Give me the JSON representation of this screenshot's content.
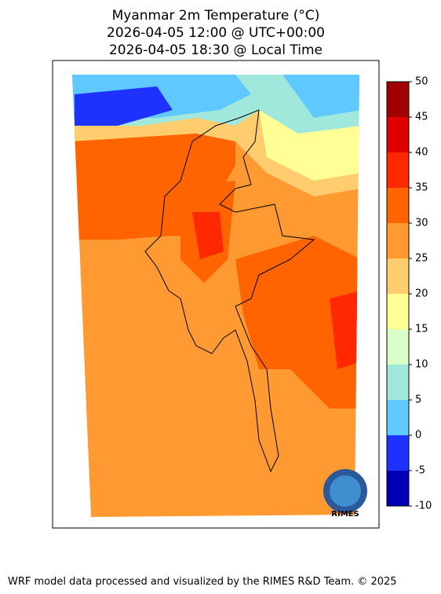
{
  "title": [
    "Myanmar 2m Temperature (°C)",
    "2026-04-05 12:00 @ UTC+00:00",
    "2026-04-05 18:30 @ Local Time"
  ],
  "colorbar": {
    "ticks": [
      -10,
      -5,
      0,
      5,
      10,
      15,
      20,
      25,
      30,
      35,
      40,
      45,
      50
    ],
    "colors": [
      "#0000b4",
      "#1e32ff",
      "#5fc8ff",
      "#a0e8dc",
      "#d8ffc8",
      "#ffff96",
      "#ffcd6e",
      "#ff9a32",
      "#ff6400",
      "#ff2800",
      "#e00000",
      "#a00000"
    ]
  },
  "logo": "RIMES",
  "footer": "WRF model data processed and visualized by the RIMES R&D Team. © 2025"
}
